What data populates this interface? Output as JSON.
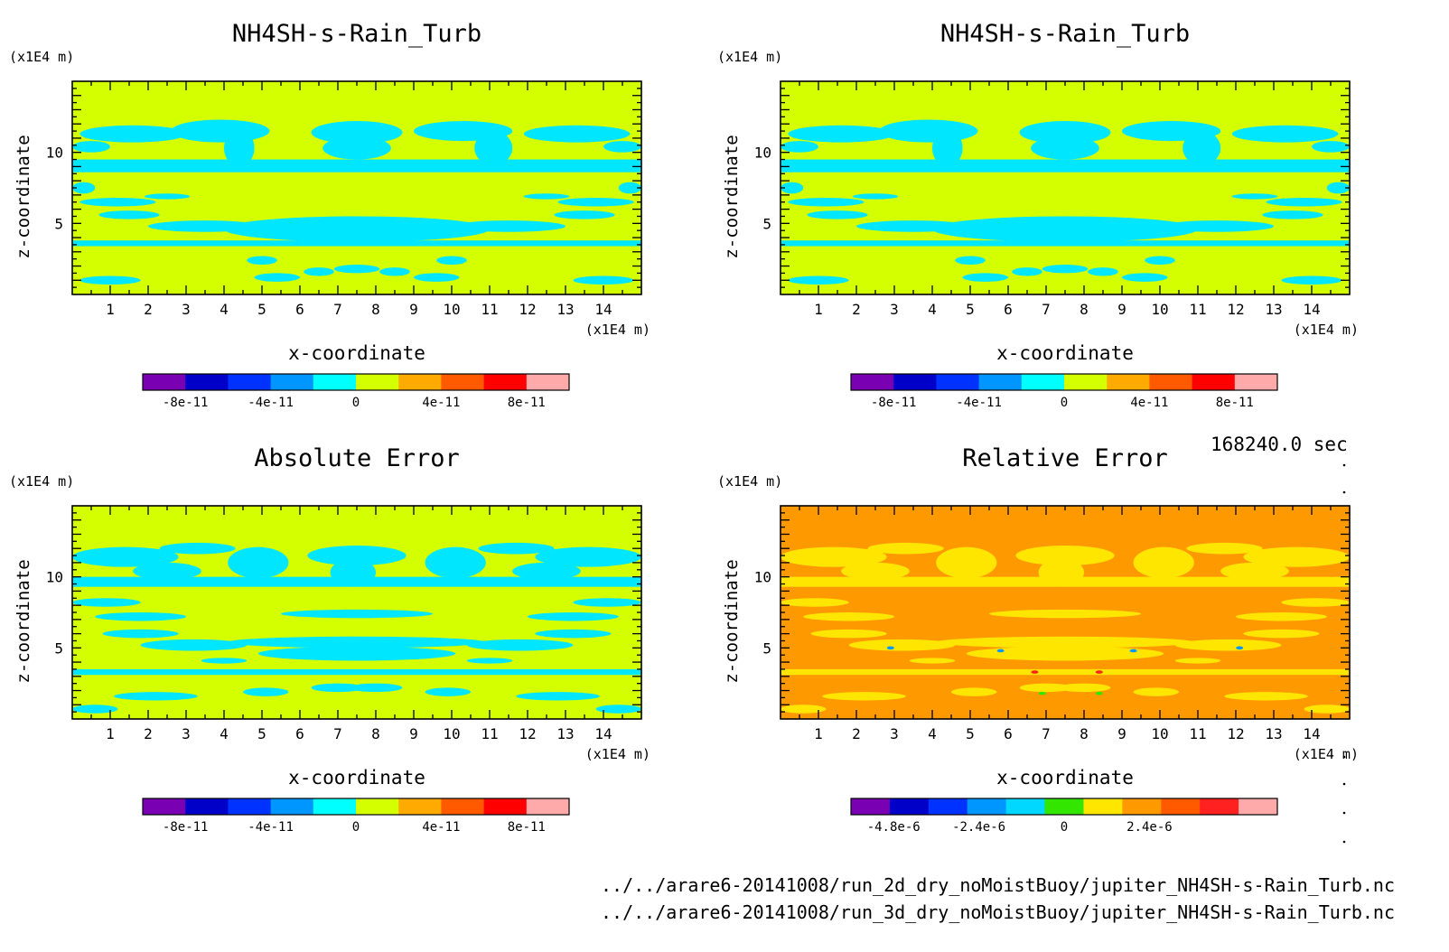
{
  "time_label": "168240.0 sec",
  "file_paths": [
    "../../arare6-20141008/run_2d_dry_noMoistBuoy/jupiter_NH4SH-s-Rain_Turb.nc",
    "../../arare6-20141008/run_3d_dry_noMoistBuoy/jupiter_NH4SH-s-Rain_Turb.nc"
  ],
  "chart_data": [
    {
      "type": "heatmap",
      "title": "NH4SH-s-Rain_Turb",
      "xlabel": "x-coordinate",
      "ylabel": "z-coordinate",
      "x_unit": "(x1E4 m)",
      "y_unit": "(x1E4 m)",
      "xlim": [
        0,
        15
      ],
      "ylim": [
        0,
        15
      ],
      "x_ticks": [
        1,
        2,
        3,
        4,
        5,
        6,
        7,
        8,
        9,
        10,
        11,
        12,
        13,
        14
      ],
      "y_ticks": [
        5,
        10
      ],
      "background_color": "#d4ff00",
      "feature_color": "#00e6ff",
      "pattern": "A",
      "colorbar": {
        "colors": [
          "#7a00b4",
          "#0000c8",
          "#0032ff",
          "#0096ff",
          "#00ffff",
          "#d4ff00",
          "#ffaa00",
          "#ff5a00",
          "#ff0000",
          "#ffaaaa"
        ],
        "tick_labels": [
          "-8e-11",
          "-4e-11",
          "0",
          "4e-11",
          "8e-11"
        ],
        "tick_values": [
          -8e-11,
          -4e-11,
          0,
          4e-11,
          8e-11
        ],
        "range": [
          -1e-10,
          1e-10
        ]
      }
    },
    {
      "type": "heatmap",
      "title": "NH4SH-s-Rain_Turb",
      "xlabel": "x-coordinate",
      "ylabel": "z-coordinate",
      "x_unit": "(x1E4 m)",
      "y_unit": "(x1E4 m)",
      "xlim": [
        0,
        15
      ],
      "ylim": [
        0,
        15
      ],
      "x_ticks": [
        1,
        2,
        3,
        4,
        5,
        6,
        7,
        8,
        9,
        10,
        11,
        12,
        13,
        14
      ],
      "y_ticks": [
        5,
        10
      ],
      "background_color": "#d4ff00",
      "feature_color": "#00e6ff",
      "pattern": "A",
      "colorbar": {
        "colors": [
          "#7a00b4",
          "#0000c8",
          "#0032ff",
          "#0096ff",
          "#00ffff",
          "#d4ff00",
          "#ffaa00",
          "#ff5a00",
          "#ff0000",
          "#ffaaaa"
        ],
        "tick_labels": [
          "-8e-11",
          "-4e-11",
          "0",
          "4e-11",
          "8e-11"
        ],
        "tick_values": [
          -8e-11,
          -4e-11,
          0,
          4e-11,
          8e-11
        ],
        "range": [
          -1e-10,
          1e-10
        ]
      }
    },
    {
      "type": "heatmap",
      "title": "Absolute Error",
      "xlabel": "x-coordinate",
      "ylabel": "z-coordinate",
      "x_unit": "(x1E4 m)",
      "y_unit": "(x1E4 m)",
      "xlim": [
        0,
        15
      ],
      "ylim": [
        0,
        15
      ],
      "x_ticks": [
        1,
        2,
        3,
        4,
        5,
        6,
        7,
        8,
        9,
        10,
        11,
        12,
        13,
        14
      ],
      "y_ticks": [
        5,
        10
      ],
      "background_color": "#d4ff00",
      "feature_color": "#00e6ff",
      "pattern": "B",
      "colorbar": {
        "colors": [
          "#7a00b4",
          "#0000c8",
          "#0032ff",
          "#0096ff",
          "#00ffff",
          "#d4ff00",
          "#ffaa00",
          "#ff5a00",
          "#ff0000",
          "#ffaaaa"
        ],
        "tick_labels": [
          "-8e-11",
          "-4e-11",
          "0",
          "4e-11",
          "8e-11"
        ],
        "tick_values": [
          -8e-11,
          -4e-11,
          0,
          4e-11,
          8e-11
        ],
        "range": [
          -1e-10,
          1e-10
        ]
      }
    },
    {
      "type": "heatmap",
      "title": "Relative Error",
      "xlabel": "x-coordinate",
      "ylabel": "z-coordinate",
      "x_unit": "(x1E4 m)",
      "y_unit": "(x1E4 m)",
      "xlim": [
        0,
        15
      ],
      "ylim": [
        0,
        15
      ],
      "x_ticks": [
        1,
        2,
        3,
        4,
        5,
        6,
        7,
        8,
        9,
        10,
        11,
        12,
        13,
        14
      ],
      "y_ticks": [
        5,
        10
      ],
      "background_color": "#ff9900",
      "feature_color": "#ffe600",
      "pattern": "B",
      "colorbar": {
        "colors": [
          "#7a00b4",
          "#0000c8",
          "#0032ff",
          "#0096ff",
          "#00d8ff",
          "#33e600",
          "#ffe600",
          "#ff9900",
          "#ff5a00",
          "#ff2020",
          "#ffaaaa"
        ],
        "tick_labels": [
          "-4.8e-6",
          "-2.4e-6",
          "0",
          "2.4e-6"
        ],
        "tick_values": [
          -4.8e-06,
          -2.4e-06,
          0,
          2.4e-06
        ],
        "range": [
          -6e-06,
          6e-06
        ]
      }
    }
  ]
}
